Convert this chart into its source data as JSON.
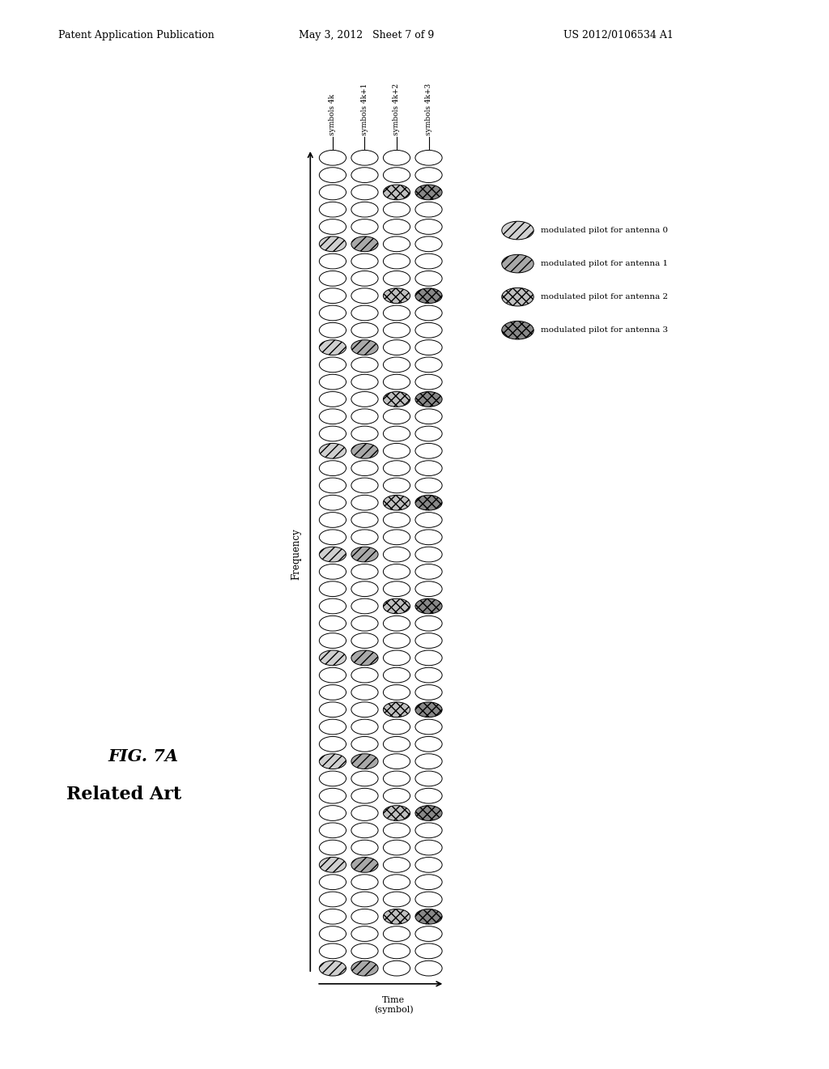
{
  "fig_width": 10.24,
  "fig_height": 13.2,
  "dpi": 100,
  "bg_color": "#ffffff",
  "title_fig": "FIG. 7A",
  "title_sub": "Related Art",
  "patent_header_left": "Patent Application Publication",
  "patent_header_mid": "May 3, 2012   Sheet 7 of 9",
  "patent_header_right": "US 2012/0106534 A1",
  "num_rows": 48,
  "num_cols": 4,
  "col_labels": [
    "symbols 4k",
    "symbols 4k+1",
    "symbols 4k+2",
    "symbols 4k+3"
  ],
  "freq_label": "Frequency",
  "time_label": "Time\n(symbol)",
  "legend_labels": [
    "modulated pilot for antenna 0",
    "modulated pilot for antenna 1",
    "modulated pilot for antenna 2",
    "modulated pilot for antenna 3"
  ],
  "pilot_period": 6,
  "pilot_row_offsets": [
    0,
    0,
    3,
    3
  ],
  "hatch_styles": [
    "///",
    "///",
    "xxx",
    "xxx"
  ],
  "hatch_facecolors": [
    "#d0d0d0",
    "#a8a8a8",
    "#c0c0c0",
    "#888888"
  ],
  "legend_hatch_styles": [
    "///",
    "///",
    "xxx",
    "xxx"
  ],
  "legend_hatch_fcs": [
    "#d0d0d0",
    "#a8a8a8",
    "#c0c0c0",
    "#888888"
  ]
}
